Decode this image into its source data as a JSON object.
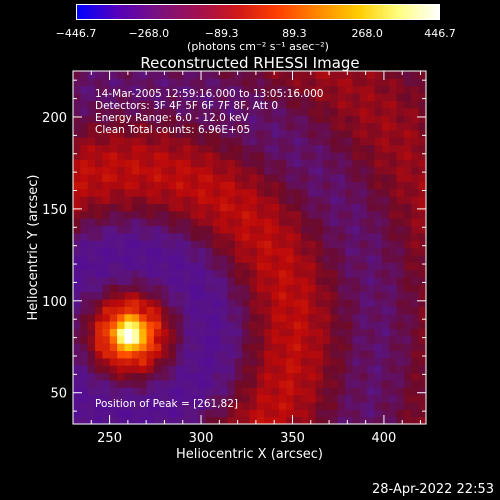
{
  "colorbar": {
    "ticks": [
      "−446.7",
      "−268.0",
      "−89.3",
      "89.3",
      "268.0",
      "446.7"
    ],
    "units": "(photons cm⁻² s⁻¹ asec⁻²)",
    "colormap": [
      "#0000ff",
      "#5500bb",
      "#7a1080",
      "#a01050",
      "#d01818",
      "#ff4000",
      "#ff8800",
      "#ffcc00",
      "#ffff80",
      "#ffffff"
    ]
  },
  "chart_data": {
    "type": "heatmap",
    "title": "Reconstructed RHESSI Image",
    "xlabel": "Heliocentric X (arcsec)",
    "ylabel": "Heliocentric Y (arcsec)",
    "xlim": [
      230,
      423
    ],
    "ylim": [
      33,
      225
    ],
    "x_ticks": [
      250,
      300,
      350,
      400
    ],
    "y_ticks": [
      50,
      100,
      150,
      200
    ],
    "peak_position": [
      261,
      82
    ],
    "value_range": [
      -446.7,
      446.7
    ],
    "annotations": {
      "time": "14-Mar-2005 12:59:16.000 to 13:05:16.000",
      "detectors": "Detectors: 3F 4F 5F 6F 7F 8F, Att 0",
      "energy": "Energy Range: 6.0 - 12.0 keV",
      "clean": "Clean     Total counts: 6.96E+05",
      "peak": "Position of Peak = [261,82]"
    }
  },
  "timestamp": "28-Apr-2022 22:53"
}
